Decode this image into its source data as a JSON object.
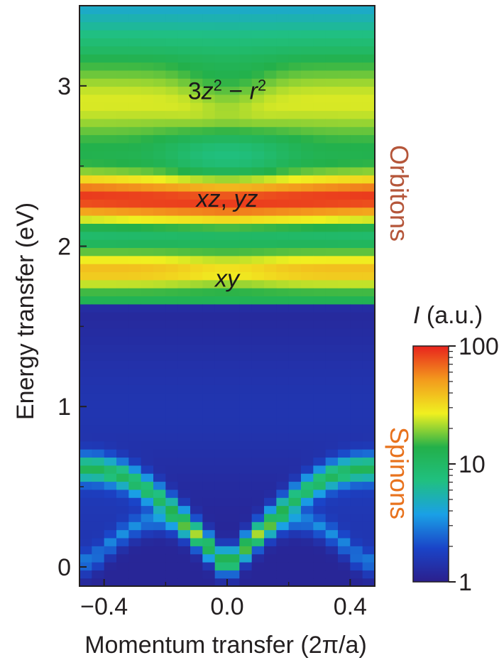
{
  "chart_data": {
    "type": "heatmap",
    "title": "",
    "xlabel": "Momentum transfer (2π/a)",
    "ylabel": "Energy transfer (eV)",
    "xlim": [
      -0.48,
      0.48
    ],
    "ylim": [
      -0.12,
      3.5
    ],
    "x_ticks": [
      {
        "value": -0.4,
        "label": "−0.4"
      },
      {
        "value": 0.0,
        "label": "0.0"
      },
      {
        "value": 0.4,
        "label": "0.4"
      }
    ],
    "y_ticks": [
      {
        "value": 0,
        "label": "0"
      },
      {
        "value": 1,
        "label": "1"
      },
      {
        "value": 2,
        "label": "2"
      },
      {
        "value": 3,
        "label": "3"
      }
    ],
    "colorbar": {
      "label": "I (a.u.)",
      "scale": "log",
      "range": [
        1,
        100
      ],
      "ticks": [
        {
          "value": 1,
          "label": "1"
        },
        {
          "value": 10,
          "label": "10"
        },
        {
          "value": 100,
          "label": "100"
        }
      ],
      "colormap": [
        "#2b1f8c",
        "#1a44c8",
        "#1aa0e6",
        "#20c080",
        "#23b04a",
        "#f0f020",
        "#f39a1d",
        "#e8231d"
      ]
    },
    "features": [
      {
        "name": "3z2-r2 orbiton band",
        "energy_eV": 2.9,
        "intensity": 40
      },
      {
        "name": "xz, yz orbiton band",
        "energy_eV": 2.3,
        "intensity": 100
      },
      {
        "name": "xy orbiton band",
        "energy_eV": 1.85,
        "intensity": 70
      },
      {
        "name": "orbiton band onset",
        "energy_eV": 1.65
      },
      {
        "name": "spinon continuum upper boundary",
        "max_energy_eV": 0.62,
        "at_q": [
          -0.45,
          0.45
        ]
      },
      {
        "name": "spinon continuum lower boundary",
        "zero_at_q": [
          -0.45,
          0.0,
          0.45
        ]
      }
    ],
    "annotations": [
      {
        "label_parts": [
          "3",
          "z",
          "2",
          " − ",
          "r",
          "2"
        ],
        "x": 0.0,
        "y": 2.97
      },
      {
        "label_parts": [
          "xz",
          ", ",
          "yz"
        ],
        "x": 0.0,
        "y": 2.3
      },
      {
        "label_parts": [
          "xy"
        ],
        "x": 0.0,
        "y": 1.8
      }
    ],
    "side_labels": [
      {
        "text": "Orbitons",
        "color": "#b5563a"
      },
      {
        "text": "Spinons",
        "color": "#e8721d"
      }
    ]
  }
}
